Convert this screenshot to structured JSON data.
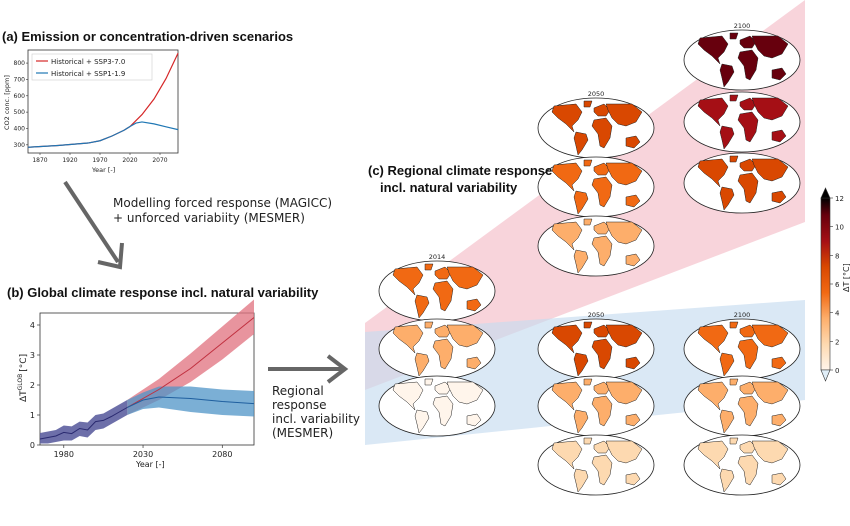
{
  "panel_a": {
    "heading": "(a) Emission or concentration-driven scenarios",
    "ylabel": "CO2 conc. [ppm]",
    "xlabel": "Year [-]",
    "yticks": [
      "300",
      "400",
      "500",
      "600",
      "700",
      "800"
    ],
    "xticks": [
      "1870",
      "1920",
      "1970",
      "2020",
      "2070"
    ],
    "legend": [
      {
        "label": "Historical + SSP3-7.0",
        "color": "#d62728"
      },
      {
        "label": "Historical + SSP1-1.9",
        "color": "#1f77b4"
      }
    ]
  },
  "arrow1_text": [
    "Modelling forced response (MAGICC)",
    "+ unforced variabiity (MESMER)"
  ],
  "panel_b": {
    "heading": "(b) Global climate response incl. natural variability",
    "ylabel": "ΔT",
    "ylabel_sup": "GLOB",
    "ylabel_unit": "[°C]",
    "xlabel": "Year [-]",
    "yticks": [
      "0",
      "1",
      "2",
      "3",
      "4"
    ],
    "xticks": [
      "1980",
      "2030",
      "2080"
    ]
  },
  "arrow2_text": [
    "Regional",
    "response",
    "incl. variability",
    "(MESMER)"
  ],
  "panel_c": {
    "heading_line1": "(c) Regional climate response",
    "heading_line2": "incl. natural variability",
    "map_titles": {
      "y2014": "2014",
      "y2050": "2050",
      "y2100": "2100"
    }
  },
  "colorbar": {
    "label": "ΔT [°C]",
    "ticks": [
      "12",
      "10",
      "8",
      "6",
      "4",
      "2",
      "0"
    ],
    "colors": [
      "#fff5eb",
      "#fdd9b0",
      "#fdae6b",
      "#f16913",
      "#d94801",
      "#a50f15",
      "#67000d",
      "#000000"
    ]
  },
  "colors": {
    "red": "#d62728",
    "blue": "#1f77b4",
    "red_fan": "#f5c6cf",
    "blue_fan": "#c6dbef"
  },
  "chart_data": [
    {
      "type": "line",
      "title": "",
      "xlabel": "Year [-]",
      "ylabel": "CO2 conc. [ppm]",
      "xlim": [
        1850,
        2100
      ],
      "ylim": [
        250,
        880
      ],
      "series": [
        {
          "name": "Historical + SSP3-7.0",
          "x": [
            1850,
            1900,
            1950,
            1970,
            1990,
            2010,
            2020,
            2040,
            2060,
            2080,
            2100
          ],
          "y": [
            285,
            296,
            311,
            325,
            354,
            389,
            412,
            485,
            580,
            705,
            860
          ]
        },
        {
          "name": "Historical + SSP1-1.9",
          "x": [
            1850,
            1900,
            1950,
            1970,
            1990,
            2010,
            2020,
            2030,
            2040,
            2060,
            2080,
            2100
          ],
          "y": [
            285,
            296,
            311,
            325,
            354,
            389,
            412,
            433,
            440,
            428,
            410,
            393
          ]
        }
      ]
    },
    {
      "type": "area",
      "title": "",
      "xlabel": "Year [-]",
      "ylabel": "ΔT GLOB [°C]",
      "xlim": [
        1965,
        2100
      ],
      "ylim": [
        0,
        4.4
      ],
      "series": [
        {
          "name": "SSP3-7.0",
          "x": [
            2020,
            2040,
            2060,
            2080,
            2100
          ],
          "y": [
            1.25,
            1.85,
            2.55,
            3.4,
            4.25
          ],
          "low": [
            1.0,
            1.5,
            2.1,
            2.85,
            3.7
          ],
          "high": [
            1.5,
            2.2,
            3.05,
            3.95,
            4.85
          ]
        },
        {
          "name": "SSP1-1.9",
          "x": [
            2020,
            2030,
            2040,
            2060,
            2080,
            2100
          ],
          "y": [
            1.25,
            1.5,
            1.6,
            1.55,
            1.45,
            1.38
          ],
          "low": [
            1.0,
            1.2,
            1.25,
            1.1,
            1.0,
            0.95
          ],
          "high": [
            1.5,
            1.75,
            1.95,
            1.95,
            1.85,
            1.8
          ]
        },
        {
          "name": "historical",
          "x": [
            1965,
            1970,
            1975,
            1980,
            1985,
            1990,
            1995,
            2000,
            2005,
            2010,
            2015,
            2020
          ],
          "y": [
            0.2,
            0.25,
            0.3,
            0.42,
            0.38,
            0.55,
            0.5,
            0.78,
            0.82,
            0.95,
            1.1,
            1.25
          ],
          "low": [
            0.05,
            0.05,
            0.1,
            0.15,
            0.15,
            0.3,
            0.25,
            0.5,
            0.55,
            0.7,
            0.85,
            1.0
          ],
          "high": [
            0.4,
            0.45,
            0.5,
            0.65,
            0.62,
            0.78,
            0.75,
            1.0,
            1.05,
            1.2,
            1.35,
            1.5
          ]
        }
      ]
    }
  ]
}
